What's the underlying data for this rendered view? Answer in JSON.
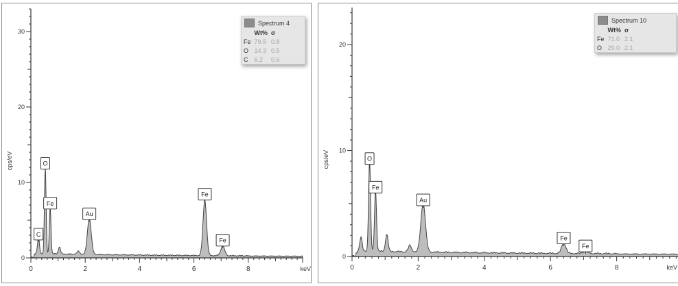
{
  "chart_data": [
    {
      "type": "area",
      "ylabel": "cps/eV",
      "xlabel": "keV",
      "xlim": [
        0,
        10
      ],
      "ylim": [
        0,
        33
      ],
      "x_ticks": [
        "0",
        "2",
        "4",
        "6",
        "8"
      ],
      "y_ticks": [
        "0",
        "10",
        "20",
        "30"
      ],
      "legend": {
        "title": "Spectrum 4",
        "headers": [
          "Wt%",
          "σ"
        ],
        "rows": [
          {
            "el": "Fe",
            "wt": "79.5",
            "sigma": "0.8"
          },
          {
            "el": "O",
            "wt": "14.3",
            "sigma": "0.5"
          },
          {
            "el": "C",
            "wt": "6.2",
            "sigma": "0.6"
          }
        ]
      },
      "peaks": [
        {
          "label": "C",
          "x": 0.28,
          "y": 2.1,
          "w": 0.035
        },
        {
          "label": "O",
          "x": 0.53,
          "y": 11.5,
          "w": 0.03
        },
        {
          "label": "Fe",
          "x": 0.71,
          "y": 6.2,
          "w": 0.03
        },
        {
          "label": "Au",
          "x": 2.15,
          "y": 4.8,
          "w": 0.07
        },
        {
          "label": "Fe",
          "x": 6.4,
          "y": 7.4,
          "w": 0.065
        },
        {
          "label": "Fe",
          "x": 7.06,
          "y": 1.3,
          "w": 0.07
        }
      ],
      "minor_peaks": [
        {
          "x": 1.05,
          "y": 0.9,
          "w": 0.04
        },
        {
          "x": 1.75,
          "y": 0.4,
          "w": 0.05
        }
      ],
      "baseline": 0.4
    },
    {
      "type": "area",
      "ylabel": "cps/eV",
      "xlabel": "keV",
      "xlim": [
        0,
        10
      ],
      "ylim": [
        0,
        23.5
      ],
      "x_ticks": [
        "0",
        "2",
        "4",
        "6",
        "8"
      ],
      "y_ticks": [
        "0",
        "10",
        "20"
      ],
      "legend": {
        "title": "Spectrum 10",
        "headers": [
          "Wt%",
          "σ"
        ],
        "rows": [
          {
            "el": "Fe",
            "wt": "71.0",
            "sigma": "2.1"
          },
          {
            "el": "O",
            "wt": "29.0",
            "sigma": "2.1"
          }
        ]
      },
      "peaks": [
        {
          "label": "O",
          "x": 0.53,
          "y": 8.5,
          "w": 0.03
        },
        {
          "label": "Fe",
          "x": 0.71,
          "y": 5.8,
          "w": 0.03
        },
        {
          "label": "Au",
          "x": 2.15,
          "y": 4.6,
          "w": 0.07
        },
        {
          "label": "Fe",
          "x": 6.4,
          "y": 1.0,
          "w": 0.065
        },
        {
          "label": "Fe",
          "x": 7.06,
          "y": 0.25,
          "w": 0.07
        }
      ],
      "minor_peaks": [
        {
          "x": 0.27,
          "y": 1.3,
          "w": 0.035
        },
        {
          "x": 1.05,
          "y": 1.6,
          "w": 0.04
        },
        {
          "x": 1.75,
          "y": 0.6,
          "w": 0.05
        }
      ],
      "baseline": 0.35
    }
  ]
}
